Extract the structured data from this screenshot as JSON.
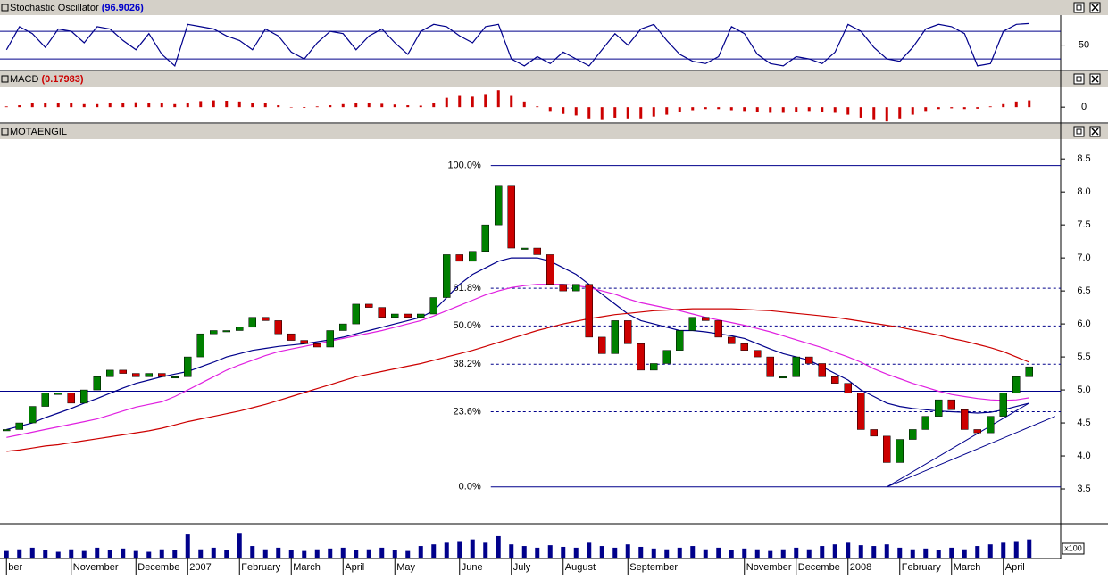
{
  "chart_data": [
    {
      "type": "line",
      "title": "Stochastic Oscillator",
      "readout": "(96.9026)",
      "readout_color": "#0000cc",
      "color": "#00008b",
      "values": [
        40,
        90,
        75,
        45,
        85,
        80,
        55,
        90,
        85,
        60,
        40,
        75,
        30,
        5,
        95,
        90,
        85,
        70,
        60,
        40,
        85,
        70,
        35,
        20,
        55,
        80,
        75,
        40,
        70,
        85,
        55,
        30,
        80,
        95,
        90,
        70,
        55,
        90,
        95,
        20,
        5,
        25,
        10,
        35,
        20,
        5,
        40,
        75,
        50,
        85,
        95,
        60,
        30,
        15,
        10,
        25,
        90,
        75,
        30,
        10,
        5,
        25,
        20,
        10,
        35,
        95,
        80,
        45,
        20,
        15,
        45,
        85,
        95,
        90,
        75,
        5,
        10,
        80,
        95,
        96.9
      ],
      "levels": [
        80,
        20
      ],
      "ylim": [
        -3,
        115
      ],
      "yticks": [
        50
      ]
    },
    {
      "type": "bar",
      "title": "MACD",
      "readout": "(0.17983)",
      "readout_color": "#cc0000",
      "color": "#cc0000",
      "values": [
        0.02,
        0.05,
        0.1,
        0.12,
        0.12,
        0.1,
        0.08,
        0.08,
        0.1,
        0.12,
        0.13,
        0.12,
        0.1,
        0.08,
        0.12,
        0.16,
        0.18,
        0.17,
        0.15,
        0.12,
        0.1,
        0.05,
        0,
        -0.02,
        0.02,
        0.05,
        0.08,
        0.1,
        0.1,
        0.09,
        0.07,
        0.05,
        0.04,
        0.1,
        0.25,
        0.3,
        0.28,
        0.35,
        0.45,
        0.3,
        0.15,
        0.02,
        -0.1,
        -0.18,
        -0.22,
        -0.3,
        -0.32,
        -0.28,
        -0.3,
        -0.3,
        -0.25,
        -0.2,
        -0.12,
        -0.08,
        -0.05,
        -0.05,
        -0.08,
        -0.1,
        -0.12,
        -0.15,
        -0.15,
        -0.12,
        -0.1,
        -0.12,
        -0.15,
        -0.2,
        -0.28,
        -0.32,
        -0.38,
        -0.3,
        -0.2,
        -0.1,
        -0.05,
        -0.03,
        -0.05,
        -0.04,
        0.02,
        0.08,
        0.15,
        0.18
      ],
      "ylim": [
        -0.4,
        0.55
      ],
      "yticks": [
        0
      ]
    },
    {
      "type": "candlestick",
      "title": "MOTAENGIL",
      "up_color": "#008000",
      "down_color": "#cc0000",
      "values": [
        4.4,
        4.5,
        4.75,
        4.95,
        4.95,
        4.8,
        5.0,
        5.2,
        5.3,
        5.25,
        5.2,
        5.25,
        5.2,
        5.2,
        5.5,
        5.85,
        5.9,
        5.9,
        5.95,
        6.1,
        6.05,
        5.85,
        5.75,
        5.7,
        5.65,
        5.9,
        6.0,
        6.3,
        6.25,
        6.1,
        6.15,
        6.1,
        6.15,
        6.4,
        7.05,
        6.95,
        7.1,
        7.5,
        8.1,
        7.15,
        7.15,
        7.05,
        6.6,
        6.5,
        6.6,
        5.8,
        5.55,
        6.05,
        5.7,
        5.3,
        5.4,
        5.6,
        5.9,
        6.1,
        6.05,
        5.8,
        5.7,
        5.6,
        5.5,
        5.2,
        5.2,
        5.5,
        5.4,
        5.2,
        5.1,
        4.95,
        4.4,
        4.3,
        3.9,
        4.25,
        4.4,
        4.6,
        4.85,
        4.7,
        4.4,
        4.35,
        4.6,
        4.95,
        5.2,
        5.35
      ],
      "series": [
        {
          "color": "#00008b",
          "values": [
            4.4,
            4.45,
            4.5,
            4.58,
            4.65,
            4.72,
            4.8,
            4.87,
            4.95,
            5.03,
            5.1,
            5.15,
            5.2,
            5.24,
            5.28,
            5.35,
            5.42,
            5.5,
            5.55,
            5.6,
            5.63,
            5.66,
            5.68,
            5.7,
            5.73,
            5.76,
            5.8,
            5.85,
            5.9,
            5.95,
            6.0,
            6.05,
            6.1,
            6.2,
            6.4,
            6.6,
            6.75,
            6.85,
            6.95,
            7.0,
            7.0,
            7.0,
            6.95,
            6.85,
            6.75,
            6.6,
            6.45,
            6.3,
            6.15,
            6.05,
            6.0,
            5.95,
            5.9,
            5.9,
            5.88,
            5.85,
            5.82,
            5.78,
            5.7,
            5.62,
            5.55,
            5.5,
            5.45,
            5.35,
            5.25,
            5.15,
            5.0,
            4.9,
            4.8,
            4.75,
            4.72,
            4.7,
            4.68,
            4.67,
            4.66,
            4.65,
            4.66,
            4.7,
            4.75,
            4.8
          ]
        },
        {
          "color": "#e020e0",
          "values": [
            4.28,
            4.32,
            4.36,
            4.4,
            4.44,
            4.48,
            4.52,
            4.56,
            4.62,
            4.68,
            4.74,
            4.78,
            4.82,
            4.9,
            5.0,
            5.1,
            5.2,
            5.3,
            5.38,
            5.45,
            5.52,
            5.58,
            5.62,
            5.66,
            5.7,
            5.74,
            5.78,
            5.82,
            5.86,
            5.9,
            5.95,
            6.0,
            6.05,
            6.12,
            6.2,
            6.28,
            6.36,
            6.44,
            6.5,
            6.55,
            6.58,
            6.6,
            6.6,
            6.6,
            6.58,
            6.55,
            6.5,
            6.45,
            6.38,
            6.32,
            6.28,
            6.24,
            6.2,
            6.15,
            6.1,
            6.06,
            6.02,
            5.98,
            5.93,
            5.88,
            5.82,
            5.76,
            5.7,
            5.64,
            5.57,
            5.5,
            5.42,
            5.32,
            5.24,
            5.17,
            5.1,
            5.04,
            4.98,
            4.93,
            4.9,
            4.87,
            4.85,
            4.84,
            4.85,
            4.88
          ]
        },
        {
          "color": "#cc0000",
          "values": [
            4.07,
            4.09,
            4.12,
            4.15,
            4.17,
            4.2,
            4.23,
            4.26,
            4.29,
            4.32,
            4.35,
            4.38,
            4.42,
            4.47,
            4.52,
            4.56,
            4.6,
            4.64,
            4.68,
            4.73,
            4.78,
            4.84,
            4.9,
            4.96,
            5.02,
            5.08,
            5.14,
            5.2,
            5.24,
            5.28,
            5.32,
            5.36,
            5.4,
            5.45,
            5.5,
            5.55,
            5.6,
            5.66,
            5.72,
            5.78,
            5.84,
            5.9,
            5.95,
            6.0,
            6.04,
            6.08,
            6.11,
            6.14,
            6.16,
            6.18,
            6.2,
            6.21,
            6.22,
            6.23,
            6.23,
            6.23,
            6.23,
            6.22,
            6.21,
            6.2,
            6.18,
            6.16,
            6.14,
            6.12,
            6.1,
            6.07,
            6.04,
            6.01,
            5.98,
            5.95,
            5.91,
            5.87,
            5.83,
            5.78,
            5.74,
            5.69,
            5.64,
            5.58,
            5.5,
            5.42
          ]
        }
      ],
      "fib_color": "#00008b",
      "fib_levels": [
        {
          "label": "100.0%",
          "value": 8.4,
          "dashed": false
        },
        {
          "label": "61.8%",
          "value": 6.54,
          "dashed": true
        },
        {
          "label": "50.0%",
          "value": 5.97,
          "dashed": true
        },
        {
          "label": "38.2%",
          "value": 5.39,
          "dashed": true
        },
        {
          "label": "23.6%",
          "value": 4.67,
          "dashed": true
        },
        {
          "label": "0.0%",
          "value": 3.53,
          "dashed": false
        }
      ],
      "hline": 4.98,
      "trendlines": [
        {
          "start": [
            68,
            3.53
          ],
          "end": [
            81,
            4.6
          ]
        },
        {
          "start": [
            68,
            3.53
          ],
          "end": [
            79,
            4.8
          ]
        }
      ],
      "ylim": [
        3.0,
        8.8
      ],
      "yticks": [
        3.5,
        {
          "value": 4,
          "label": "4.0"
        },
        4.5,
        {
          "value": 5,
          "label": "5.0"
        },
        5.5,
        {
          "value": 6,
          "label": "6.0"
        },
        6.5,
        {
          "value": 7,
          "label": "7.0"
        },
        7.5,
        {
          "value": 8,
          "label": "8.0"
        },
        8.5
      ]
    },
    {
      "type": "bar",
      "color": "#00008b",
      "unit_label": "x100",
      "values": [
        8,
        10,
        12,
        9,
        7,
        10,
        8,
        12,
        9,
        11,
        8,
        7,
        10,
        9,
        28,
        10,
        12,
        9,
        30,
        14,
        10,
        12,
        9,
        8,
        10,
        11,
        12,
        9,
        10,
        12,
        9,
        8,
        14,
        16,
        18,
        20,
        22,
        18,
        26,
        16,
        14,
        12,
        15,
        13,
        12,
        18,
        14,
        12,
        16,
        13,
        11,
        10,
        12,
        14,
        10,
        12,
        9,
        11,
        10,
        8,
        10,
        12,
        10,
        14,
        16,
        18,
        15,
        14,
        16,
        12,
        10,
        11,
        9,
        12,
        10,
        14,
        16,
        18,
        20,
        22
      ],
      "categories": [
        "ber",
        null,
        null,
        null,
        null,
        "November",
        null,
        null,
        null,
        null,
        "Decembe",
        null,
        null,
        null,
        "2007",
        null,
        null,
        null,
        "February",
        null,
        null,
        null,
        "March",
        null,
        null,
        null,
        "April",
        null,
        null,
        null,
        "May",
        null,
        null,
        null,
        null,
        "June",
        null,
        null,
        null,
        "July",
        null,
        null,
        null,
        "August",
        null,
        null,
        null,
        null,
        "September",
        null,
        null,
        null,
        null,
        null,
        null,
        null,
        null,
        "November",
        null,
        null,
        null,
        "Decembe",
        null,
        null,
        null,
        "2008",
        null,
        null,
        null,
        "February",
        null,
        null,
        null,
        "March",
        null,
        null,
        null,
        "April",
        null,
        null
      ],
      "ylim": [
        0,
        40
      ]
    }
  ]
}
